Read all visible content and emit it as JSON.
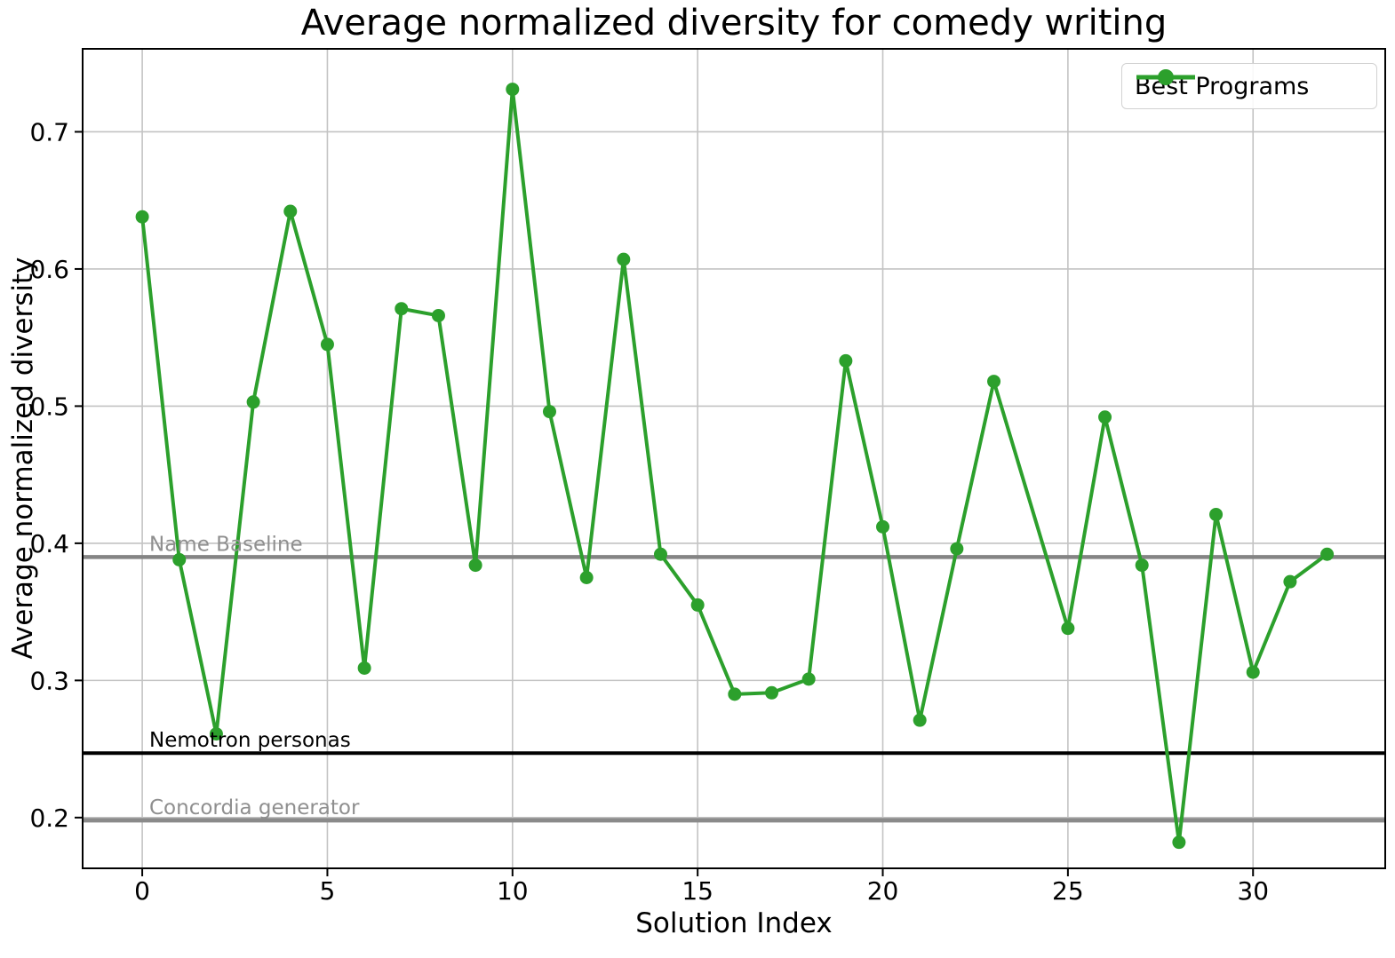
{
  "chart_data": {
    "type": "line",
    "title": "Average normalized diversity for comedy writing",
    "xlabel": "Solution Index",
    "ylabel": "Average normalized diversity",
    "grid": true,
    "legend_position": "upper right",
    "xlim": [
      -1.61,
      33.57
    ],
    "ylim": [
      0.163,
      0.7605
    ],
    "xticks": [
      0,
      5,
      10,
      15,
      20,
      25,
      30
    ],
    "yticks": [
      0.2,
      0.3,
      0.4,
      0.5,
      0.6,
      0.7
    ],
    "series": [
      {
        "name": "Best Programs",
        "color": "#2ca02c",
        "marker": "circle",
        "x": [
          0,
          1,
          2,
          3,
          4,
          5,
          6,
          7,
          8,
          9,
          10,
          11,
          12,
          13,
          14,
          15,
          16,
          17,
          18,
          19,
          20,
          21,
          22,
          23,
          25,
          26,
          27,
          28,
          29,
          30,
          31,
          32
        ],
        "y": [
          0.638,
          0.388,
          0.261,
          0.503,
          0.642,
          0.545,
          0.309,
          0.571,
          0.566,
          0.384,
          0.731,
          0.496,
          0.375,
          0.607,
          0.392,
          0.355,
          0.29,
          0.291,
          0.301,
          0.533,
          0.412,
          0.271,
          0.396,
          0.518,
          0.338,
          0.492,
          0.384,
          0.182,
          0.421,
          0.306,
          0.372,
          0.392
        ]
      }
    ],
    "baselines": [
      {
        "label": "Name Baseline",
        "value": 0.39,
        "color": "#848484",
        "label_color": "#8f8f8f",
        "line_width": 4.5
      },
      {
        "label": "Nemotron personas",
        "value": 0.247,
        "color": "#000000",
        "label_color": "#000000",
        "line_width": 4
      },
      {
        "label": "Concordia generator",
        "value": 0.198,
        "color": "#8a8a8a",
        "label_color": "#8f8f8f",
        "line_width": 5
      }
    ]
  },
  "style": {
    "background": "#ffffff",
    "grid_color": "#c3c3c3",
    "spine_color": "#000000",
    "tick_label_color": "#000000",
    "series_green": "#2ca02c"
  }
}
